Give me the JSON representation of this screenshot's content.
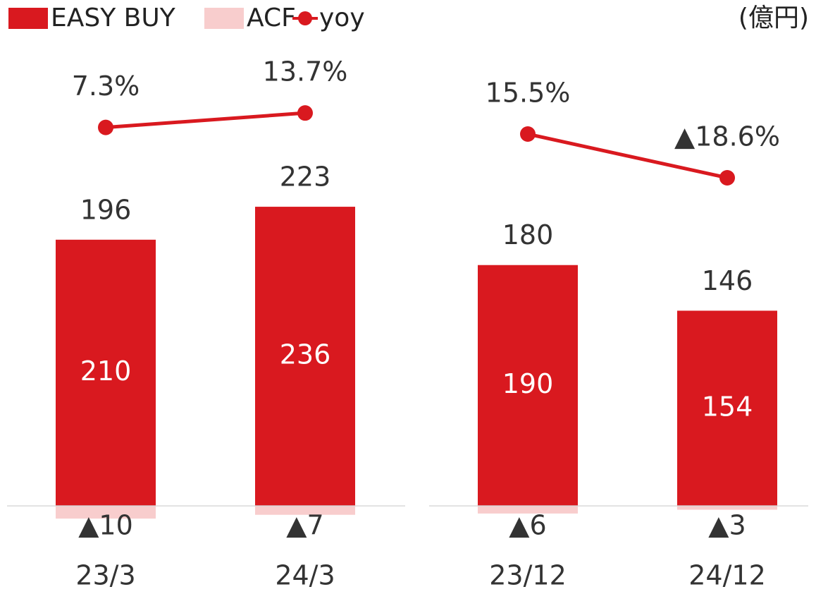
{
  "unit": "(億円)",
  "chart_data": [
    {
      "type": "bar",
      "categories": [
        "23/3",
        "24/3"
      ],
      "series": [
        {
          "name": "EASY BUY",
          "color": "#d9191f",
          "values": [
            210,
            236
          ]
        },
        {
          "name": "ACF",
          "color": "#f8cdcd",
          "values": [
            -10,
            -7
          ],
          "value_labels": [
            "▲10",
            "▲7"
          ]
        },
        {
          "name": "yoy",
          "color": "#d9191f",
          "type": "line",
          "axis": "y2",
          "values": [
            7.3,
            13.7
          ],
          "value_labels": [
            "7.3%",
            "13.7%"
          ]
        }
      ],
      "totals": [
        196,
        223
      ],
      "ylim": [
        -50,
        280
      ],
      "y2lim": [
        -30,
        45
      ]
    },
    {
      "type": "bar",
      "categories": [
        "23/12",
        "24/12"
      ],
      "series": [
        {
          "name": "EASY BUY",
          "color": "#d9191f",
          "values": [
            190,
            154
          ]
        },
        {
          "name": "ACF",
          "color": "#f8cdcd",
          "values": [
            -6,
            -3
          ],
          "value_labels": [
            "▲6",
            "▲3"
          ]
        },
        {
          "name": "yoy",
          "color": "#d9191f",
          "type": "line",
          "axis": "y2",
          "values": [
            15.5,
            -18.6
          ],
          "value_labels": [
            "15.5%",
            "▲18.6%"
          ]
        }
      ],
      "totals": [
        180,
        146
      ],
      "ylim": [
        -50,
        280
      ],
      "y2lim": [
        -45,
        87
      ]
    }
  ]
}
